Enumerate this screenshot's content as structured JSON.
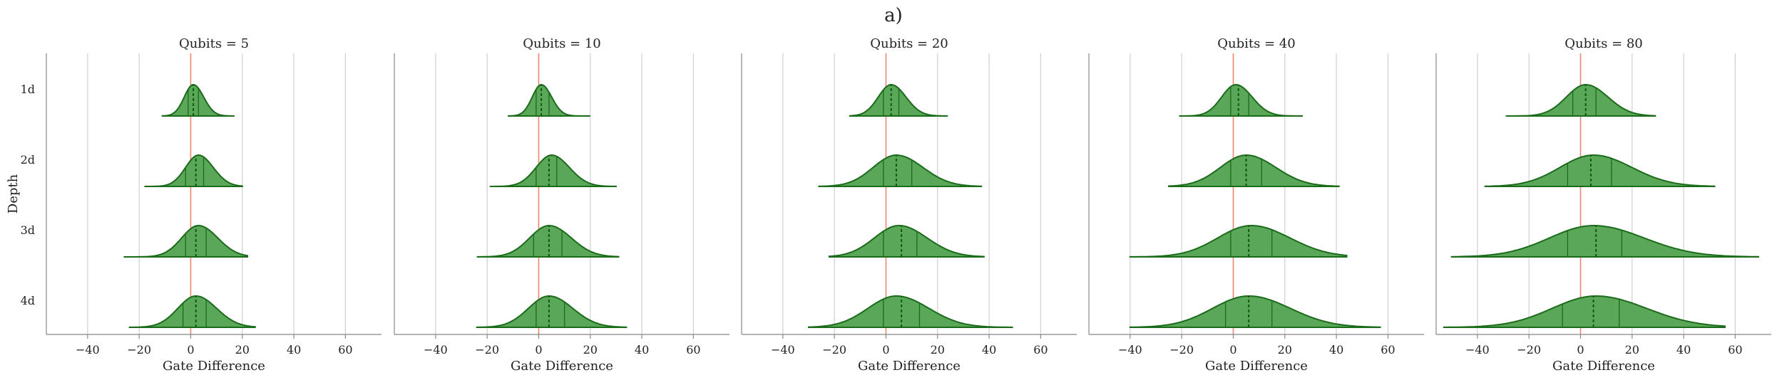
{
  "figure_title": "a)",
  "chart_data": {
    "type": "violin",
    "ylabel": "Depth",
    "xlabel": "Gate Difference",
    "categories": [
      "1d",
      "2d",
      "3d",
      "4d"
    ],
    "x_ticks": [
      -40,
      -20,
      0,
      20,
      40,
      60
    ],
    "xlim": [
      -56,
      74
    ],
    "reference_line_x": 0,
    "colors": {
      "fill": "#5aa75a",
      "edge": "#1a6b1a",
      "reference": "#f08070"
    },
    "panels": [
      {
        "title": "Qubits = 5",
        "violins": [
          {
            "category": "1d",
            "min": -11,
            "max": 17,
            "q1": -1,
            "median": 1,
            "q3": 3,
            "peak": 1,
            "sd": 3.5
          },
          {
            "category": "2d",
            "min": -18,
            "max": 20,
            "q1": -2,
            "median": 2,
            "q3": 5,
            "peak": 3,
            "sd": 5
          },
          {
            "category": "3d",
            "min": -26,
            "max": 22,
            "q1": -2,
            "median": 2,
            "q3": 6,
            "peak": 3,
            "sd": 6.5
          },
          {
            "category": "4d",
            "min": -24,
            "max": 25,
            "q1": -3,
            "median": 2,
            "q3": 6,
            "peak": 2,
            "sd": 7
          }
        ]
      },
      {
        "title": "Qubits = 10",
        "violins": [
          {
            "category": "1d",
            "min": -12,
            "max": 20,
            "q1": -1,
            "median": 1,
            "q3": 4,
            "peak": 1,
            "sd": 3.5
          },
          {
            "category": "2d",
            "min": -19,
            "max": 30,
            "q1": -1,
            "median": 4,
            "q3": 7,
            "peak": 5,
            "sd": 6
          },
          {
            "category": "3d",
            "min": -24,
            "max": 31,
            "q1": -2,
            "median": 4,
            "q3": 9,
            "peak": 4,
            "sd": 7.5
          },
          {
            "category": "4d",
            "min": -24,
            "max": 34,
            "q1": -1,
            "median": 4,
            "q3": 10,
            "peak": 4,
            "sd": 8
          }
        ]
      },
      {
        "title": "Qubits = 20",
        "violins": [
          {
            "category": "1d",
            "min": -14,
            "max": 24,
            "q1": -1,
            "median": 2,
            "q3": 5,
            "peak": 2,
            "sd": 5
          },
          {
            "category": "2d",
            "min": -26,
            "max": 37,
            "q1": -1,
            "median": 4,
            "q3": 10,
            "peak": 4,
            "sd": 9
          },
          {
            "category": "3d",
            "min": -22,
            "max": 38,
            "q1": -1,
            "median": 6,
            "q3": 12,
            "peak": 5,
            "sd": 9.5
          },
          {
            "category": "4d",
            "min": -30,
            "max": 49,
            "q1": -1,
            "median": 6,
            "q3": 13,
            "peak": 4,
            "sd": 11
          }
        ]
      },
      {
        "title": "Qubits = 40",
        "violins": [
          {
            "category": "1d",
            "min": -21,
            "max": 27,
            "q1": -1,
            "median": 2,
            "q3": 6,
            "peak": 1,
            "sd": 5.5
          },
          {
            "category": "2d",
            "min": -25,
            "max": 41,
            "q1": -1,
            "median": 5,
            "q3": 11,
            "peak": 5,
            "sd": 10
          },
          {
            "category": "3d",
            "min": -40,
            "max": 44,
            "q1": -1,
            "median": 6,
            "q3": 15,
            "peak": 7,
            "sd": 13
          },
          {
            "category": "4d",
            "min": -40,
            "max": 57,
            "q1": -3,
            "median": 6,
            "q3": 15,
            "peak": 6,
            "sd": 14
          }
        ]
      },
      {
        "title": "Qubits = 80",
        "violins": [
          {
            "category": "1d",
            "min": -29,
            "max": 29,
            "q1": -3,
            "median": 2,
            "q3": 6,
            "peak": 2,
            "sd": 7.5
          },
          {
            "category": "2d",
            "min": -37,
            "max": 52,
            "q1": -5,
            "median": 4,
            "q3": 12,
            "peak": 5,
            "sd": 13
          },
          {
            "category": "3d",
            "min": -50,
            "max": 69,
            "q1": -5,
            "median": 6,
            "q3": 16,
            "peak": 5,
            "sd": 17
          },
          {
            "category": "4d",
            "min": -53,
            "max": 56,
            "q1": -7,
            "median": 5,
            "q3": 15,
            "peak": 6,
            "sd": 17
          }
        ]
      }
    ]
  }
}
